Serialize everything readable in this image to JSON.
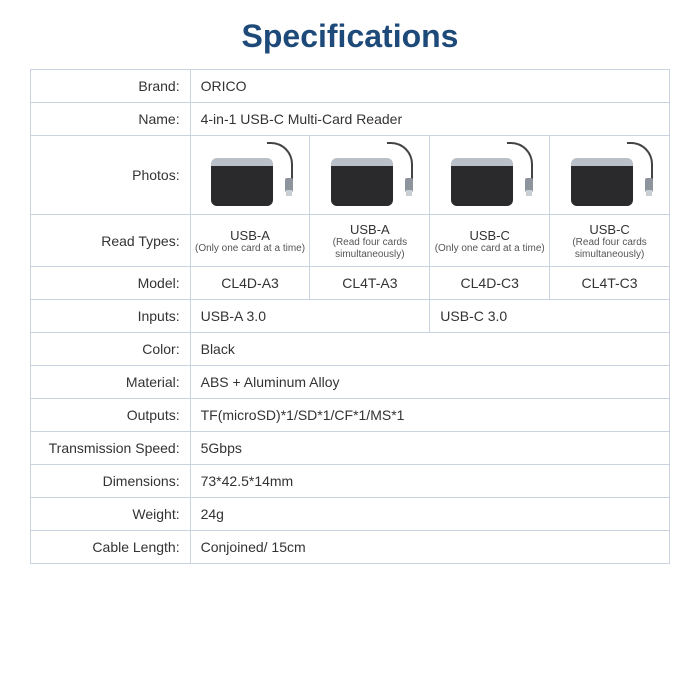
{
  "title": "Specifications",
  "labels": {
    "brand": "Brand:",
    "name": "Name:",
    "photos": "Photos:",
    "read_types": "Read Types:",
    "model": "Model:",
    "inputs": "Inputs:",
    "color": "Color:",
    "material": "Material:",
    "outputs": "Outputs:",
    "speed": "Transmission Speed:",
    "dimensions": "Dimensions:",
    "weight": "Weight:",
    "cable": "Cable Length:"
  },
  "values": {
    "brand": "ORICO",
    "name": "4-in-1 USB-C Multi-Card Reader",
    "color": "Black",
    "material": "ABS + Aluminum Alloy",
    "outputs": "TF(microSD)*1/SD*1/CF*1/MS*1",
    "speed": "5Gbps",
    "dimensions": "73*42.5*14mm",
    "weight": "24g",
    "cable": "Conjoined/ 15cm"
  },
  "variants": [
    {
      "read_title": "USB-A",
      "read_sub": "(Only one card at a time)",
      "model": "CL4D-A3"
    },
    {
      "read_title": "USB-A",
      "read_sub": "(Read four cards simultaneously)",
      "model": "CL4T-A3"
    },
    {
      "read_title": "USB-C",
      "read_sub": "(Only one card at a time)",
      "model": "CL4D-C3"
    },
    {
      "read_title": "USB-C",
      "read_sub": "(Read four cards simultaneously)",
      "model": "CL4T-C3"
    }
  ],
  "inputs": {
    "left": "USB-A 3.0",
    "right": "USB-C 3.0"
  },
  "colors": {
    "title": "#1e4a7a",
    "border": "#c9d4e0",
    "text": "#333333",
    "background": "#ffffff"
  }
}
